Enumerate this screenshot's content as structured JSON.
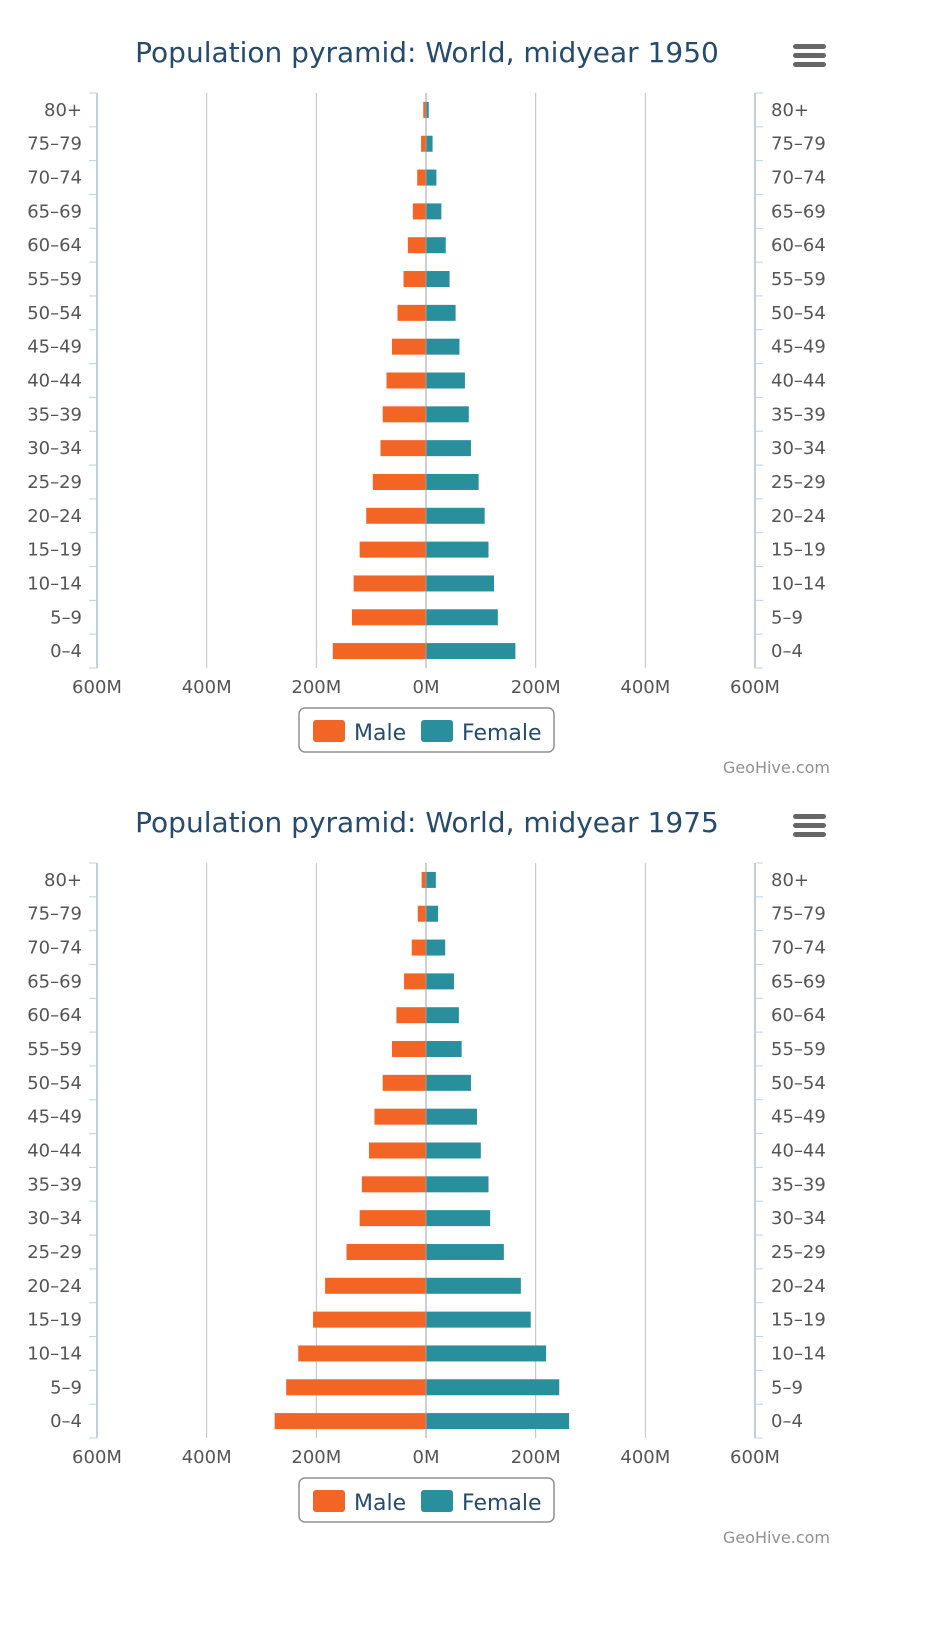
{
  "colors": {
    "male": "#f26524",
    "female": "#2a8f9c",
    "title": "#274b6d",
    "grid": "#c0c0c0",
    "axis": "#c0d0e0"
  },
  "icons": {
    "menu": "hamburger-menu-icon"
  },
  "chart_data": [
    {
      "type": "bar",
      "title": "Population pyramid: World, midyear 1950",
      "categories": [
        "80+",
        "75–79",
        "70–74",
        "65–69",
        "60–64",
        "55–59",
        "50–54",
        "45–49",
        "40–44",
        "35–39",
        "30–34",
        "25–29",
        "20–24",
        "15–19",
        "10–14",
        "5–9",
        "0–4"
      ],
      "series": [
        {
          "name": "Male",
          "values": [
            -5,
            -9,
            -16,
            -24,
            -33,
            -41,
            -52,
            -62,
            -72,
            -79,
            -83,
            -97,
            -109,
            -121,
            -132,
            -135,
            -170
          ]
        },
        {
          "name": "Female",
          "values": [
            5,
            12,
            19,
            28,
            36,
            43,
            54,
            61,
            71,
            78,
            82,
            96,
            107,
            114,
            124,
            131,
            163
          ]
        }
      ],
      "xtick_labels": [
        "600M",
        "400M",
        "200M",
        "0M",
        "200M",
        "400M",
        "600M"
      ],
      "xlim": [
        -600,
        600
      ],
      "unit": "M",
      "grid": true,
      "legend": "bottom-center",
      "credit": "GeoHive.com"
    },
    {
      "type": "bar",
      "title": "Population pyramid: World, midyear 1975",
      "categories": [
        "80+",
        "75–79",
        "70–74",
        "65–69",
        "60–64",
        "55–59",
        "50–54",
        "45–49",
        "40–44",
        "35–39",
        "30–34",
        "25–29",
        "20–24",
        "15–19",
        "10–14",
        "5–9",
        "0–4"
      ],
      "series": [
        {
          "name": "Male",
          "values": [
            -8,
            -15,
            -26,
            -40,
            -54,
            -62,
            -79,
            -94,
            -104,
            -117,
            -121,
            -145,
            -184,
            -206,
            -233,
            -255,
            -276
          ]
        },
        {
          "name": "Female",
          "values": [
            18,
            22,
            35,
            51,
            60,
            65,
            82,
            93,
            100,
            114,
            117,
            142,
            173,
            191,
            219,
            243,
            261
          ]
        }
      ],
      "xtick_labels": [
        "600M",
        "400M",
        "200M",
        "0M",
        "200M",
        "400M",
        "600M"
      ],
      "xlim": [
        -600,
        600
      ],
      "unit": "M",
      "grid": true,
      "legend": "bottom-center",
      "credit": "GeoHive.com"
    }
  ]
}
